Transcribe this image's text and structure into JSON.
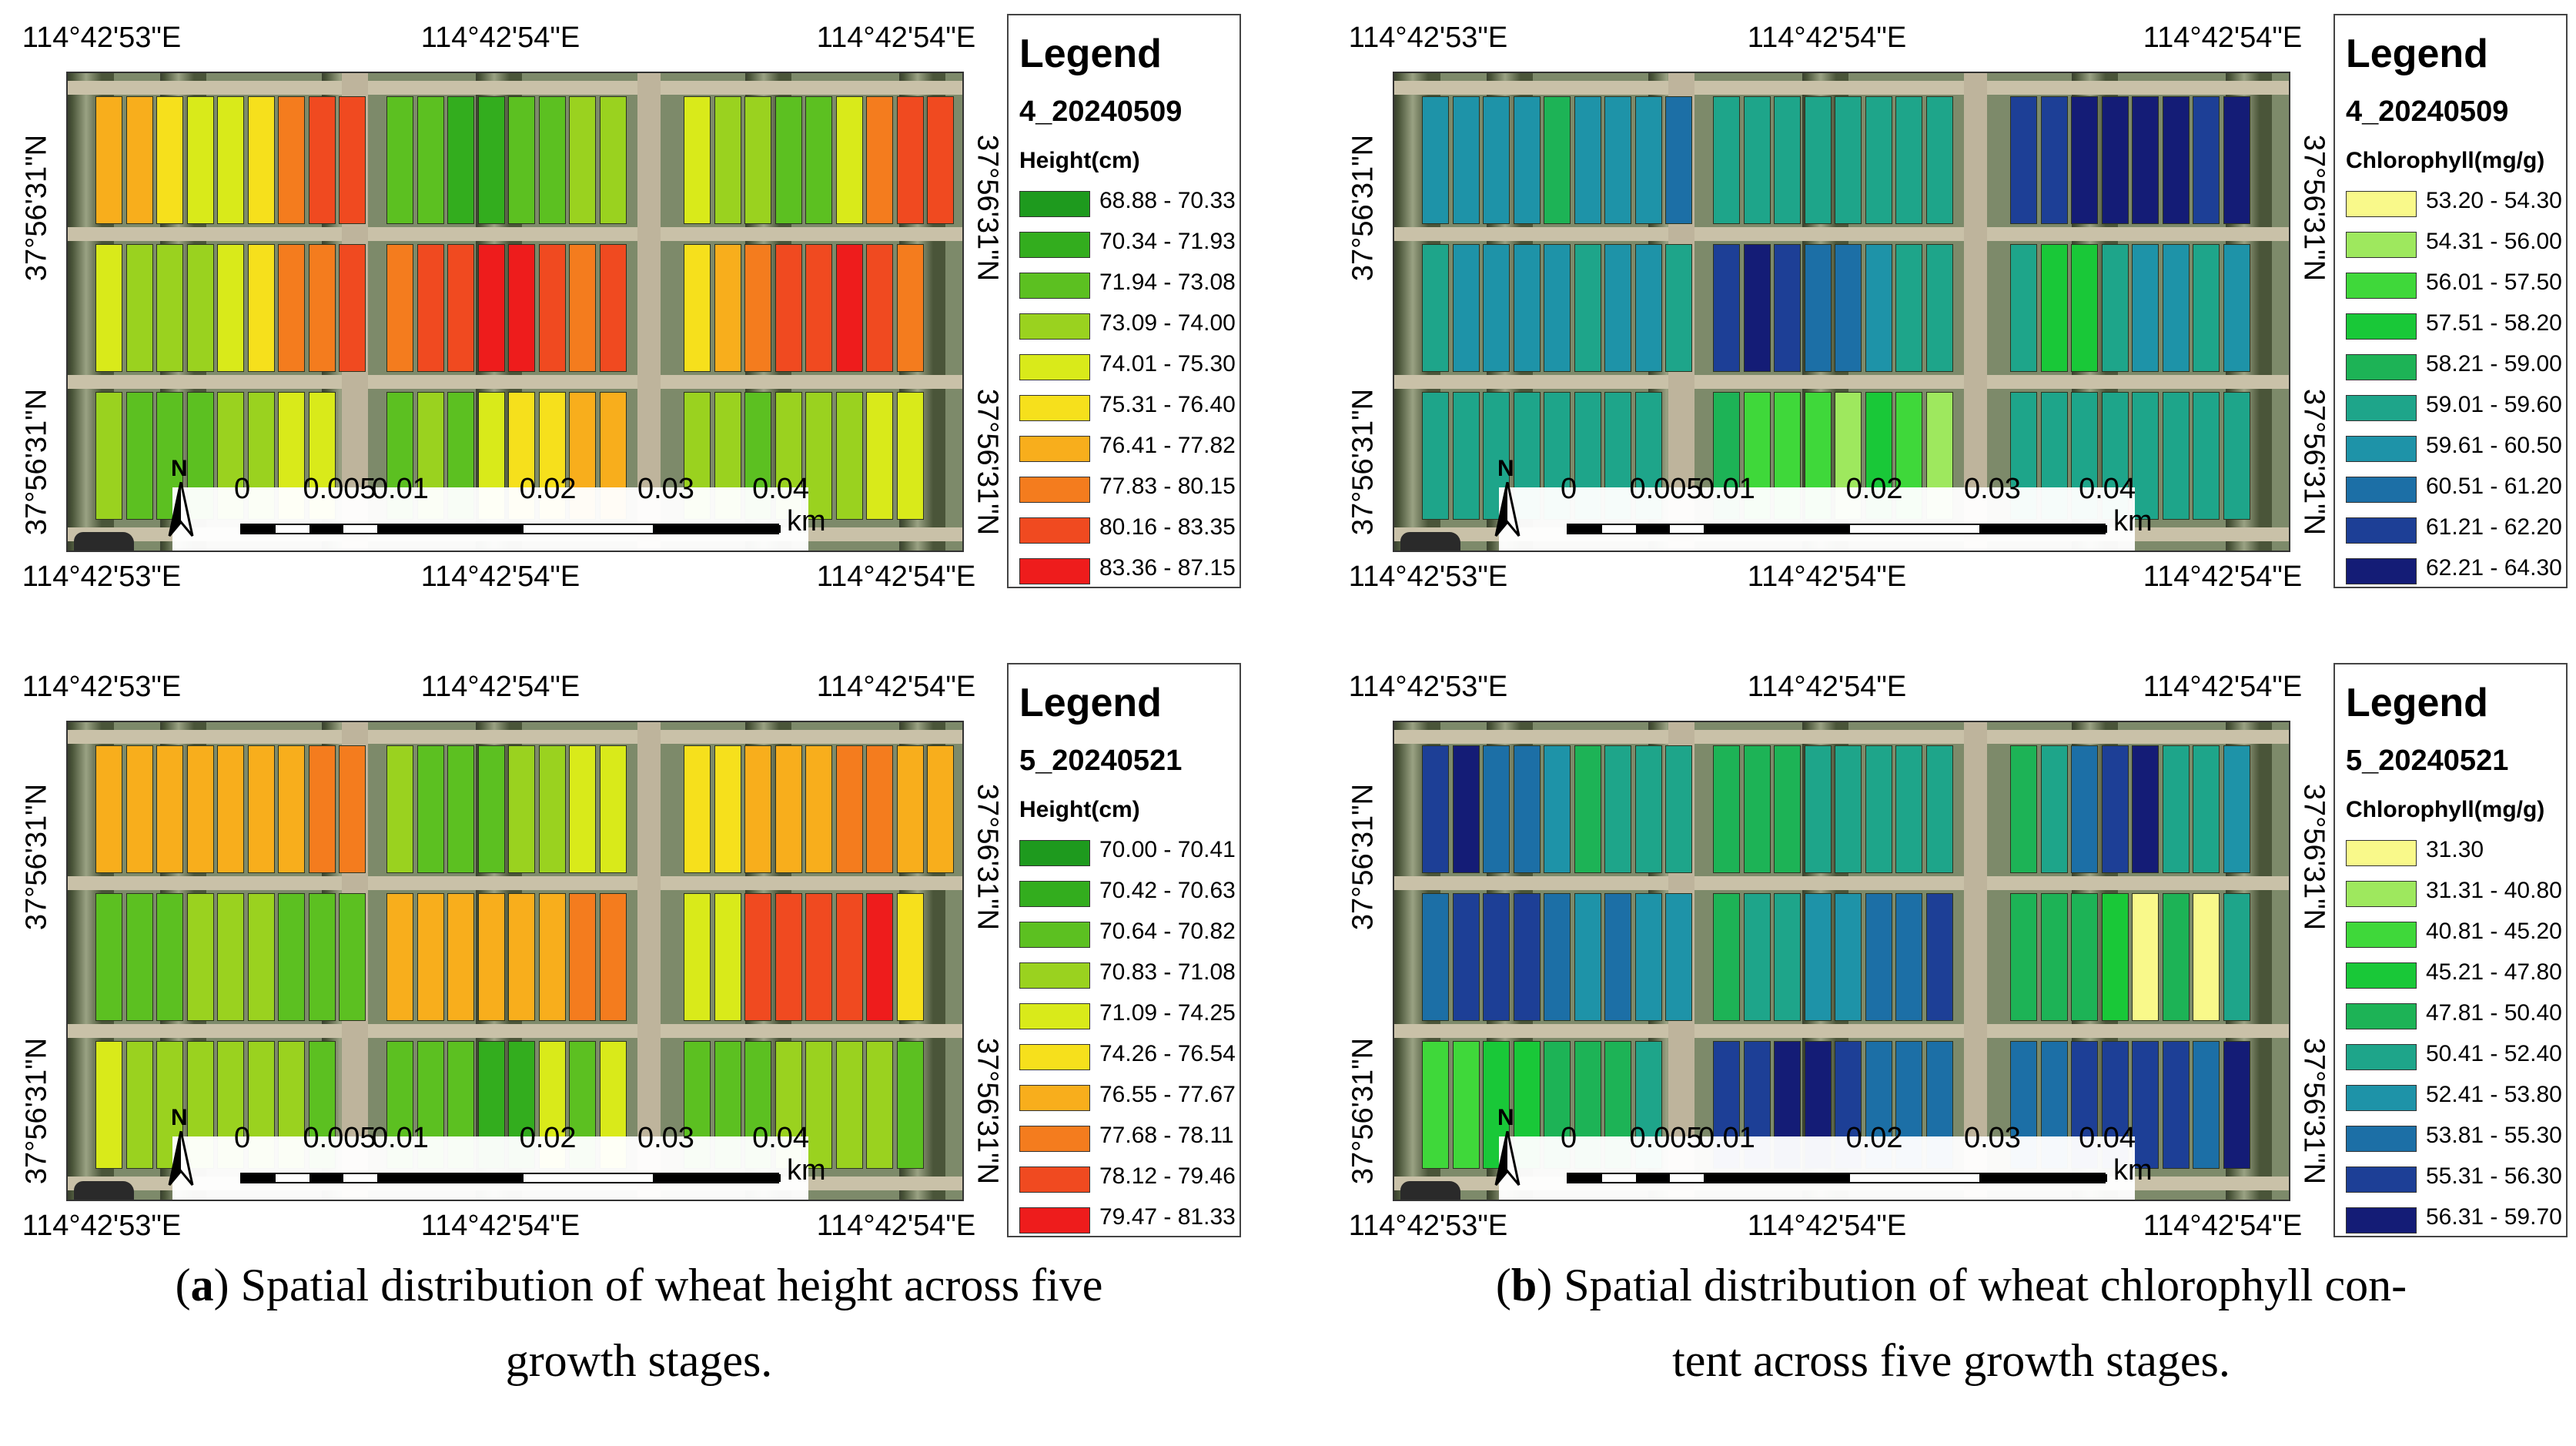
{
  "coordinates": {
    "top_labels": [
      "114°42'53\"E",
      "114°42'54\"E",
      "114°42'54\"E"
    ],
    "bottom_labels": [
      "114°42'53\"E",
      "114°42'54\"E",
      "114°42'54\"E"
    ],
    "left_labels": [
      "37°56'31\"N",
      "37°56'31\"N"
    ],
    "right_labels": [
      "37°56'31\"N",
      "37°56'31\"N"
    ]
  },
  "scale_bar": {
    "ticks": [
      "0",
      "0.005",
      "0.01",
      "0.02",
      "0.03",
      "0.04"
    ],
    "unit": "km"
  },
  "north_arrow": "N",
  "legend_title": "Legend",
  "panels": [
    {
      "id": "height_stage4",
      "date": "4_20240509",
      "unit": "Height(cm)",
      "classes": [
        {
          "label": "68.88 - 70.33",
          "color": "#1e9a1e"
        },
        {
          "label": "70.34 - 71.93",
          "color": "#33ad1e"
        },
        {
          "label": "71.94 - 73.08",
          "color": "#5cc021"
        },
        {
          "label": "73.09 - 74.00",
          "color": "#9ad21f"
        },
        {
          "label": "74.01 - 75.30",
          "color": "#d9ea1a"
        },
        {
          "label": "75.31 - 76.40",
          "color": "#f6e01c"
        },
        {
          "label": "76.41 - 77.82",
          "color": "#f8ae1c"
        },
        {
          "label": "77.83 - 80.15",
          "color": "#f47c1e"
        },
        {
          "label": "80.16 - 83.35",
          "color": "#f04a20"
        },
        {
          "label": "83.36 - 87.15",
          "color": "#ee1c1c"
        }
      ]
    },
    {
      "id": "chlorophyll_stage4",
      "date": "4_20240509",
      "unit": "Chlorophyll(mg/g)",
      "classes": [
        {
          "label": "53.20 - 54.30",
          "color": "#f9f98a"
        },
        {
          "label": "54.31 - 56.00",
          "color": "#9ee85e"
        },
        {
          "label": "56.01 - 57.50",
          "color": "#3fd83a"
        },
        {
          "label": "57.51 - 58.20",
          "color": "#19c838"
        },
        {
          "label": "58.21 - 59.00",
          "color": "#1db356"
        },
        {
          "label": "59.01 - 59.60",
          "color": "#1ea58a"
        },
        {
          "label": "59.61 - 60.50",
          "color": "#1e93a8"
        },
        {
          "label": "60.51 - 61.20",
          "color": "#1c6fa6"
        },
        {
          "label": "61.21 - 62.20",
          "color": "#1d3f96"
        },
        {
          "label": "62.21 - 64.30",
          "color": "#141c76"
        }
      ]
    },
    {
      "id": "height_stage5",
      "date": "5_20240521",
      "unit": "Height(cm)",
      "classes": [
        {
          "label": "70.00 - 70.41",
          "color": "#1e9a1e"
        },
        {
          "label": "70.42 - 70.63",
          "color": "#33ad1e"
        },
        {
          "label": "70.64 - 70.82",
          "color": "#5cc021"
        },
        {
          "label": "70.83 - 71.08",
          "color": "#9ad21f"
        },
        {
          "label": "71.09 - 74.25",
          "color": "#d9ea1a"
        },
        {
          "label": "74.26 - 76.54",
          "color": "#f6e01c"
        },
        {
          "label": "76.55 - 77.67",
          "color": "#f8ae1c"
        },
        {
          "label": "77.68 - 78.11",
          "color": "#f47c1e"
        },
        {
          "label": "78.12 - 79.46",
          "color": "#f04a20"
        },
        {
          "label": "79.47 - 81.33",
          "color": "#ee1c1c"
        }
      ]
    },
    {
      "id": "chlorophyll_stage5",
      "date": "5_20240521",
      "unit": "Chlorophyll(mg/g)",
      "classes": [
        {
          "label": "31.30",
          "color": "#f9f98a"
        },
        {
          "label": "31.31 - 40.80",
          "color": "#9ee85e"
        },
        {
          "label": "40.81 - 45.20",
          "color": "#3fd83a"
        },
        {
          "label": "45.21 - 47.80",
          "color": "#19c838"
        },
        {
          "label": "47.81 - 50.40",
          "color": "#1db356"
        },
        {
          "label": "50.41 - 52.40",
          "color": "#1ea58a"
        },
        {
          "label": "52.41 - 53.80",
          "color": "#1e93a8"
        },
        {
          "label": "53.81 - 55.30",
          "color": "#1c6fa6"
        },
        {
          "label": "55.31 - 56.30",
          "color": "#1d3f96"
        },
        {
          "label": "56.31 - 59.70",
          "color": "#141c76"
        }
      ]
    }
  ],
  "plot_classes": [
    [
      [
        6,
        6,
        5,
        4,
        4,
        5,
        7,
        8,
        8
      ],
      [
        4,
        3,
        3,
        3,
        4,
        5,
        7,
        7,
        8
      ],
      [
        3,
        2,
        2,
        2,
        3,
        3,
        4,
        4
      ],
      [
        2,
        2,
        1,
        1,
        2,
        2,
        3,
        3
      ],
      [
        7,
        8,
        8,
        9,
        9,
        8,
        7,
        8
      ],
      [
        2,
        3,
        2,
        4,
        5,
        5,
        6,
        6
      ],
      [
        4,
        3,
        3,
        2,
        2,
        4,
        7,
        8,
        8
      ],
      [
        5,
        6,
        7,
        8,
        8,
        9,
        8,
        7
      ],
      [
        3,
        3,
        2,
        3,
        3,
        3,
        4,
        4
      ]
    ],
    [
      [
        6,
        6,
        6,
        6,
        4,
        6,
        6,
        6,
        7
      ],
      [
        5,
        6,
        6,
        6,
        6,
        5,
        6,
        6,
        5
      ],
      [
        5,
        5,
        5,
        5,
        5,
        5,
        5,
        5
      ],
      [
        5,
        5,
        5,
        5,
        5,
        5,
        5,
        5
      ],
      [
        8,
        9,
        8,
        7,
        7,
        6,
        5,
        5
      ],
      [
        4,
        2,
        2,
        2,
        1,
        3,
        2,
        1
      ],
      [
        8,
        8,
        9,
        9,
        9,
        9,
        8,
        9
      ],
      [
        5,
        3,
        3,
        5,
        6,
        6,
        5,
        6
      ],
      [
        5,
        5,
        5,
        5,
        5,
        5,
        5,
        5
      ]
    ],
    [
      [
        6,
        6,
        6,
        6,
        6,
        6,
        6,
        7,
        7
      ],
      [
        2,
        2,
        2,
        3,
        3,
        3,
        2,
        2,
        2
      ],
      [
        4,
        3,
        3,
        3,
        3,
        3,
        3,
        2
      ],
      [
        3,
        2,
        2,
        2,
        3,
        3,
        4,
        4
      ],
      [
        6,
        6,
        6,
        6,
        6,
        6,
        7,
        7
      ],
      [
        2,
        2,
        2,
        1,
        1,
        4,
        2,
        4
      ],
      [
        5,
        5,
        6,
        6,
        6,
        7,
        7,
        6,
        6
      ],
      [
        4,
        4,
        8,
        8,
        8,
        8,
        9,
        5
      ],
      [
        2,
        2,
        2,
        3,
        3,
        3,
        3,
        2
      ]
    ],
    [
      [
        8,
        9,
        7,
        7,
        6,
        4,
        5,
        5,
        5
      ],
      [
        7,
        8,
        8,
        8,
        7,
        6,
        7,
        6,
        6
      ],
      [
        2,
        2,
        3,
        3,
        4,
        4,
        4,
        5
      ],
      [
        4,
        4,
        4,
        5,
        5,
        5,
        5,
        5
      ],
      [
        4,
        5,
        5,
        6,
        6,
        7,
        7,
        8
      ],
      [
        8,
        8,
        9,
        9,
        8,
        7,
        7,
        7
      ],
      [
        4,
        5,
        7,
        8,
        9,
        5,
        5,
        6
      ],
      [
        4,
        4,
        4,
        3,
        0,
        4,
        0,
        5
      ],
      [
        7,
        7,
        8,
        8,
        8,
        8,
        7,
        9
      ]
    ]
  ],
  "captions": [
    {
      "letter": "a",
      "line1": ") Spatial distribution of wheat height across five",
      "line2": "growth stages."
    },
    {
      "letter": "b",
      "line1": ") Spatial distribution of wheat chlorophyll con-",
      "line2": "tent across five growth stages."
    }
  ]
}
